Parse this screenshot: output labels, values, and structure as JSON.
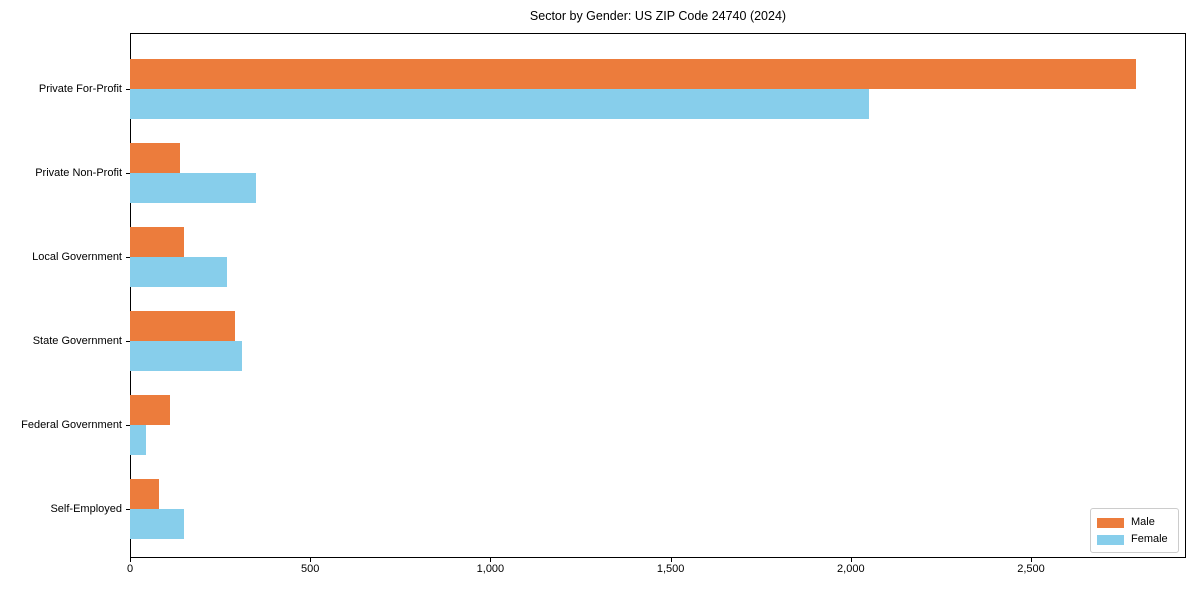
{
  "chart_data": {
    "type": "bar",
    "orientation": "horizontal",
    "title": "Sector by Gender: US ZIP Code 24740 (2024)",
    "xlabel": "",
    "ylabel": "",
    "categories": [
      "Private For-Profit",
      "Private Non-Profit",
      "Local Government",
      "State Government",
      "Federal Government",
      "Self-Employed"
    ],
    "series": [
      {
        "name": "Male",
        "color": "#EC7C3C",
        "values": [
          2790,
          140,
          150,
          290,
          110,
          80
        ]
      },
      {
        "name": "Female",
        "color": "#87CEEB",
        "values": [
          2050,
          350,
          270,
          310,
          45,
          150
        ]
      }
    ],
    "xlim": [
      0,
      2930
    ],
    "xticks": [
      0,
      500,
      1000,
      1500,
      2000,
      2500
    ],
    "xtick_labels": [
      "0",
      "500",
      "1,000",
      "1,500",
      "2,000",
      "2,500"
    ],
    "grid": false,
    "legend_position": "lower right"
  }
}
